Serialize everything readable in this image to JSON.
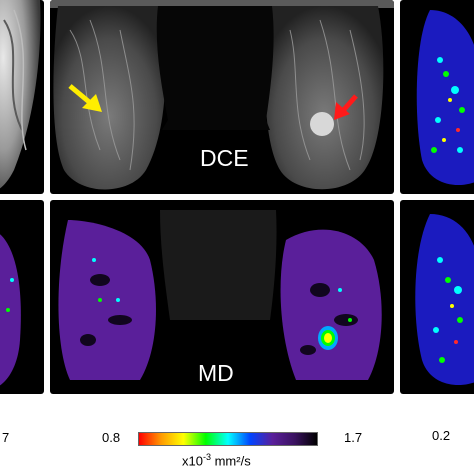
{
  "panels": {
    "top_center_label": "DCE",
    "bottom_center_label": "MD"
  },
  "colorbar": {
    "min_label": "0.8",
    "max_label": "1.7",
    "unit_prefix": "x10",
    "unit_exp": "-3",
    "unit_suffix": " mm²/s",
    "gradient": [
      "#ff0000",
      "#ff9a00",
      "#ffff00",
      "#00ff00",
      "#00ffff",
      "#0044ff",
      "#5a1f9a",
      "#3a1260",
      "#000000"
    ]
  },
  "left_fragment_label": "7",
  "right_fragment_label": "0.2",
  "arrows": {
    "yellow": "#ffee00",
    "red": "#ff1a1a"
  }
}
